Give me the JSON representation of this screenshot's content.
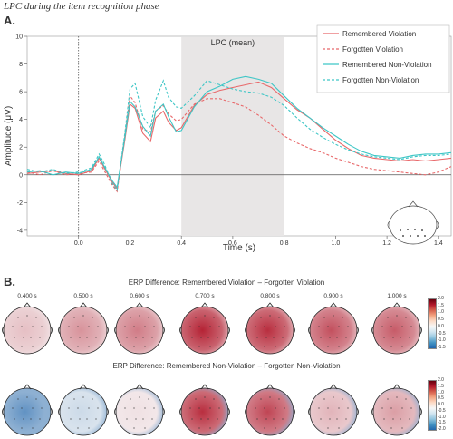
{
  "figure": {
    "heading": "LPC during the item recognition phase",
    "panel_a_label": "A.",
    "panel_b_label": "B."
  },
  "chart_data": {
    "type": "line",
    "title": "",
    "window_label": "LPC (mean)",
    "xlabel": "Time (s)",
    "ylabel": "Amplitude (μV)",
    "xlim": [
      -0.2,
      1.45
    ],
    "ylim": [
      -4.4,
      10
    ],
    "x_ticks": [
      "0.0",
      "0.2",
      "0.4",
      "0.6",
      "0.8",
      "1.0",
      "1.2",
      "1.4"
    ],
    "y_ticks": [
      "-4",
      "-2",
      "0",
      "2",
      "4",
      "6",
      "8",
      "10"
    ],
    "shaded_window": [
      0.4,
      0.8
    ],
    "stimulus_onset": 0.0,
    "legend_position": "top-right",
    "x": [
      -0.2,
      -0.15,
      -0.1,
      -0.05,
      0.0,
      0.05,
      0.08,
      0.1,
      0.13,
      0.15,
      0.18,
      0.2,
      0.22,
      0.25,
      0.28,
      0.3,
      0.33,
      0.35,
      0.38,
      0.4,
      0.45,
      0.5,
      0.55,
      0.6,
      0.65,
      0.7,
      0.75,
      0.8,
      0.85,
      0.9,
      0.95,
      1.0,
      1.05,
      1.1,
      1.15,
      1.2,
      1.25,
      1.3,
      1.35,
      1.4,
      1.45
    ],
    "series": [
      {
        "name": "Remembered Violation",
        "color": "#e8686a",
        "dash": "solid",
        "values": [
          0.1,
          0.2,
          0.3,
          0.1,
          0.0,
          0.3,
          1.2,
          0.5,
          -0.5,
          -1.0,
          2.5,
          5.1,
          4.8,
          3.0,
          2.4,
          4.1,
          4.6,
          3.8,
          3.2,
          3.4,
          5.0,
          5.8,
          6.1,
          6.3,
          6.5,
          6.7,
          6.3,
          5.5,
          4.7,
          4.1,
          3.3,
          2.5,
          1.9,
          1.4,
          1.2,
          1.1,
          1.0,
          1.1,
          1.0,
          1.1,
          1.2
        ]
      },
      {
        "name": "Forgotten Violation",
        "color": "#e8686a",
        "dash": "dashed",
        "values": [
          0.2,
          0.0,
          0.3,
          0.0,
          0.1,
          0.2,
          1.0,
          0.3,
          -0.7,
          -1.2,
          2.8,
          5.7,
          5.2,
          3.3,
          3.1,
          4.6,
          5.0,
          4.4,
          3.9,
          4.0,
          5.1,
          5.5,
          5.5,
          5.2,
          4.9,
          4.3,
          3.6,
          2.8,
          2.3,
          1.9,
          1.6,
          1.2,
          0.9,
          0.6,
          0.4,
          0.3,
          0.2,
          0.1,
          0.0,
          0.2,
          0.6
        ]
      },
      {
        "name": "Remembered Non-Violation",
        "color": "#3ec6c6",
        "dash": "solid",
        "values": [
          0.2,
          0.3,
          0.0,
          0.2,
          0.1,
          0.4,
          1.3,
          0.6,
          -0.4,
          -0.9,
          2.7,
          5.3,
          4.9,
          3.5,
          2.8,
          4.6,
          5.1,
          4.2,
          3.1,
          3.2,
          4.9,
          6.0,
          6.4,
          6.9,
          7.1,
          6.9,
          6.6,
          5.7,
          4.8,
          4.1,
          3.4,
          2.8,
          2.2,
          1.7,
          1.4,
          1.3,
          1.2,
          1.4,
          1.5,
          1.5,
          1.6
        ]
      },
      {
        "name": "Forgotten Non-Violation",
        "color": "#3ec6c6",
        "dash": "dashed",
        "values": [
          0.4,
          0.2,
          0.4,
          0.1,
          0.2,
          0.5,
          1.5,
          0.8,
          -0.6,
          -1.1,
          3.0,
          6.2,
          6.6,
          4.2,
          3.4,
          5.4,
          6.8,
          5.6,
          4.9,
          4.8,
          5.7,
          6.8,
          6.5,
          6.2,
          6.0,
          5.9,
          5.6,
          5.0,
          4.1,
          3.3,
          2.7,
          2.2,
          1.8,
          1.5,
          1.3,
          1.2,
          1.1,
          1.3,
          1.4,
          1.4,
          1.5
        ]
      }
    ]
  },
  "topomaps": {
    "times": [
      "0.400 s",
      "0.500 s",
      "0.600 s",
      "0.700 s",
      "0.800 s",
      "0.900 s",
      "1.000 s"
    ],
    "colorbar_ticks_top": [
      "2.0",
      "1.5",
      "1.0",
      "0.5",
      "0.0",
      "-0.5",
      "-1.0",
      "-1.5"
    ],
    "colorbar_ticks_bottom": [
      "2.0",
      "1.5",
      "1.0",
      "0.5",
      "0.0",
      "-0.5",
      "-1.0",
      "-1.5",
      "-2.0"
    ],
    "rows": [
      {
        "title": "ERP Difference: Remembered Violation – Forgotten Violation",
        "intensity": [
          0.25,
          0.45,
          0.55,
          0.95,
          0.9,
          0.75,
          0.7
        ]
      },
      {
        "title": "ERP Difference: Remembered Non-Violation – Forgotten Non-Violation",
        "intensity": [
          -0.7,
          -0.2,
          0.1,
          0.9,
          0.8,
          0.3,
          0.4
        ]
      }
    ]
  }
}
